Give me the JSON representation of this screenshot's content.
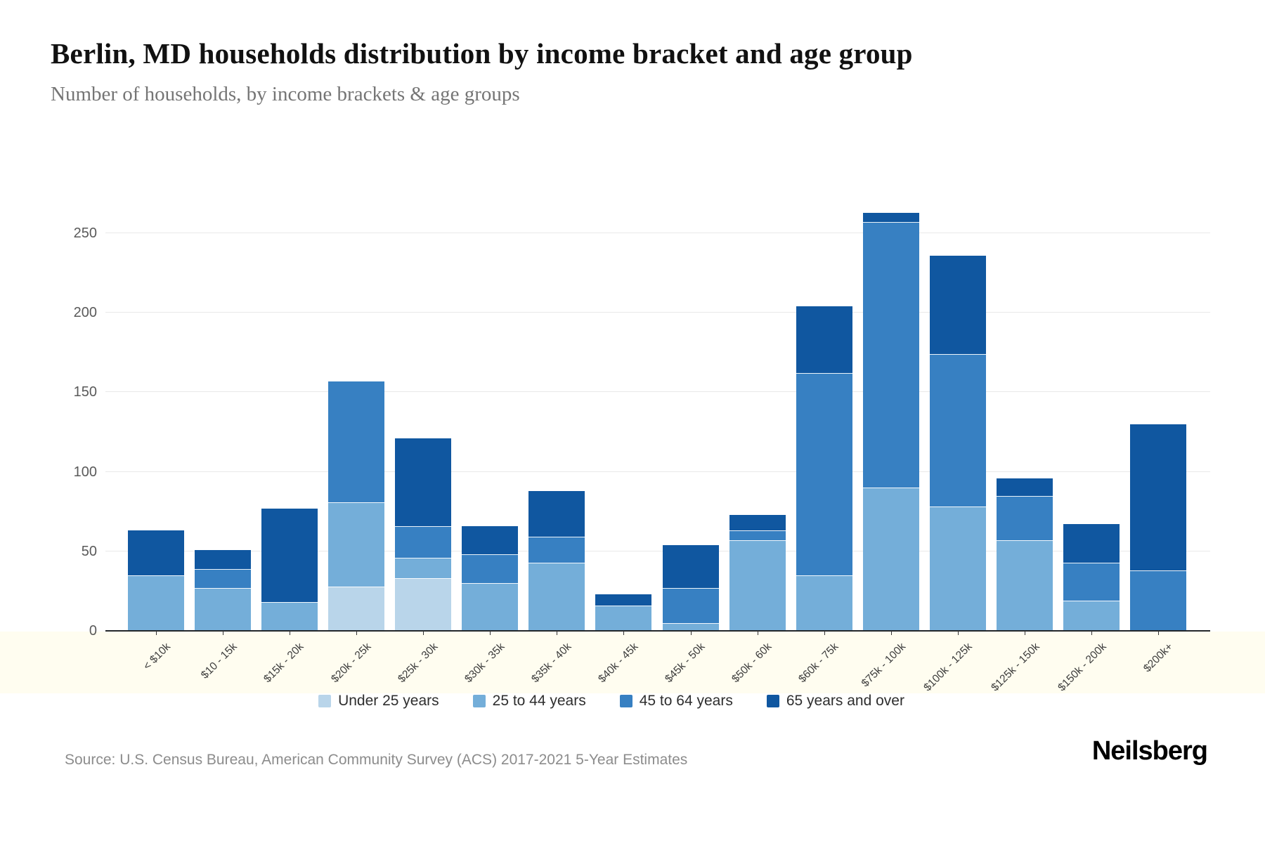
{
  "title": "Berlin, MD households distribution by income bracket and age group",
  "subtitle": "Number of households, by income brackets & age groups",
  "source": "Source: U.S. Census Bureau, American Community Survey (ACS) 2017-2021 5-Year Estimates",
  "brand": "Neilsberg",
  "colors": {
    "under_25": "#b9d5ea",
    "age_25_44": "#74aed9",
    "age_45_64": "#3780c2",
    "age_65_over": "#1057a0",
    "axis_line": "#23272b",
    "gridline": "#e9e9e9"
  },
  "chart_data": {
    "type": "bar",
    "stacked": true,
    "title": "Berlin, MD households distribution by income bracket and age group",
    "xlabel": "",
    "ylabel": "",
    "ylim": [
      0,
      250
    ],
    "yticks": [
      0,
      50,
      100,
      150,
      200,
      250
    ],
    "grid": true,
    "legend_position": "bottom",
    "categories": [
      "< $10k",
      "$10 - 15k",
      "$15k - 20k",
      "$20k - 25k",
      "$25k - 30k",
      "$30k - 35k",
      "$35k - 40k",
      "$40k - 45k",
      "$45k - 50k",
      "$50k - 60k",
      "$60k - 75k",
      "$75k - 100k",
      "$100k - 125k",
      "$125k - 150k",
      "$150k - 200k",
      "$200k+"
    ],
    "series": [
      {
        "name": "Under 25 years",
        "color": "#b9d5ea",
        "values": [
          0,
          0,
          0,
          28,
          33,
          0,
          0,
          0,
          0,
          0,
          0,
          0,
          0,
          0,
          0,
          0
        ]
      },
      {
        "name": "25 to 44 years",
        "color": "#74aed9",
        "values": [
          35,
          27,
          18,
          53,
          13,
          30,
          43,
          16,
          5,
          57,
          35,
          90,
          78,
          57,
          19,
          0
        ]
      },
      {
        "name": "45 to 64 years",
        "color": "#3780c2",
        "values": [
          0,
          12,
          0,
          76,
          20,
          18,
          16,
          0,
          22,
          6,
          127,
          167,
          96,
          28,
          24,
          38
        ]
      },
      {
        "name": "65 years and over",
        "color": "#1057a0",
        "values": [
          28,
          12,
          59,
          0,
          55,
          18,
          29,
          7,
          27,
          10,
          42,
          6,
          62,
          11,
          24,
          92
        ]
      }
    ],
    "totals": [
      63,
      51,
      77,
      157,
      121,
      66,
      88,
      23,
      54,
      73,
      204,
      263,
      236,
      96,
      67,
      130
    ]
  }
}
